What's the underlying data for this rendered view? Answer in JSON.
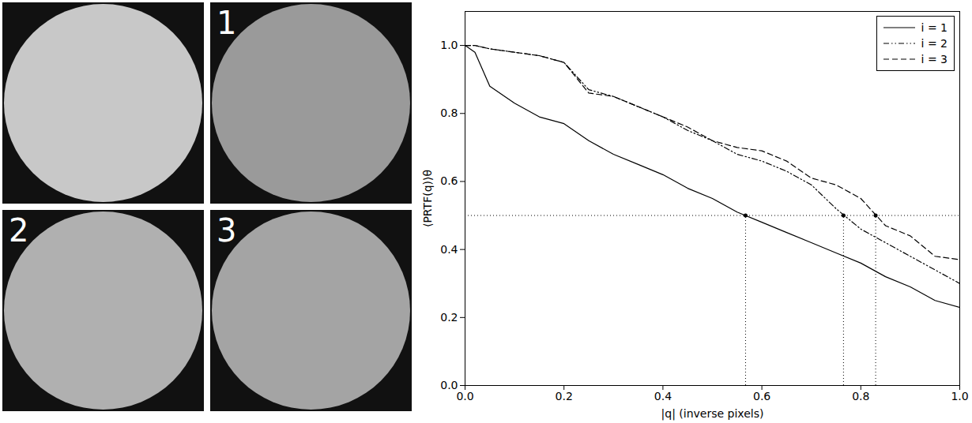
{
  "image_panels": {
    "labels": [
      "1",
      "2",
      "3"
    ]
  },
  "chart_data": {
    "type": "line",
    "xlabel": "|q| (inverse pixels)",
    "ylabel": "⟨PRTF(q)⟩θ",
    "xlim": [
      0,
      1
    ],
    "ylim": [
      0,
      1.1
    ],
    "xticks": [
      {
        "value": 0,
        "label": "0.0"
      },
      {
        "value": 0.2,
        "label": "0.2"
      },
      {
        "value": 0.4,
        "label": "0.4"
      },
      {
        "value": 0.6,
        "label": "0.6"
      },
      {
        "value": 0.8,
        "label": "0.8"
      },
      {
        "value": 1,
        "label": "1.0"
      }
    ],
    "yticks": [
      {
        "value": 0,
        "label": "0.0"
      },
      {
        "value": 0.2,
        "label": "0.2"
      },
      {
        "value": 0.4,
        "label": "0.4"
      },
      {
        "value": 0.6,
        "label": "0.6"
      },
      {
        "value": 0.8,
        "label": "0.8"
      },
      {
        "value": 1,
        "label": "1.0"
      }
    ],
    "grid": false,
    "legend": "upper right",
    "x": [
      0,
      0.02,
      0.05,
      0.1,
      0.15,
      0.2,
      0.25,
      0.3,
      0.35,
      0.4,
      0.45,
      0.5,
      0.55,
      0.6,
      0.65,
      0.7,
      0.75,
      0.8,
      0.85,
      0.9,
      0.95,
      1.0
    ],
    "series": [
      {
        "name": "i = 1",
        "color": "#000000",
        "line_style": "solid",
        "values": [
          1.0,
          0.98,
          0.88,
          0.83,
          0.79,
          0.77,
          0.72,
          0.68,
          0.65,
          0.62,
          0.58,
          0.55,
          0.51,
          0.48,
          0.45,
          0.42,
          0.39,
          0.36,
          0.32,
          0.29,
          0.25,
          0.23
        ]
      },
      {
        "name": "i = 2",
        "color": "#000000",
        "line_style": "dashdotdot",
        "values": [
          1.0,
          1.0,
          0.99,
          0.98,
          0.97,
          0.95,
          0.87,
          0.85,
          0.82,
          0.79,
          0.75,
          0.72,
          0.68,
          0.66,
          0.63,
          0.59,
          0.52,
          0.46,
          0.42,
          0.38,
          0.34,
          0.3
        ]
      },
      {
        "name": "i = 3",
        "color": "#000000",
        "line_style": "dashed",
        "values": [
          1.0,
          1.0,
          0.99,
          0.98,
          0.97,
          0.95,
          0.86,
          0.85,
          0.82,
          0.79,
          0.76,
          0.72,
          0.7,
          0.69,
          0.66,
          0.61,
          0.59,
          0.55,
          0.47,
          0.44,
          0.38,
          0.37
        ]
      }
    ],
    "threshold": 0.5,
    "crossings": [
      0.567,
      0.765,
      0.83
    ]
  }
}
